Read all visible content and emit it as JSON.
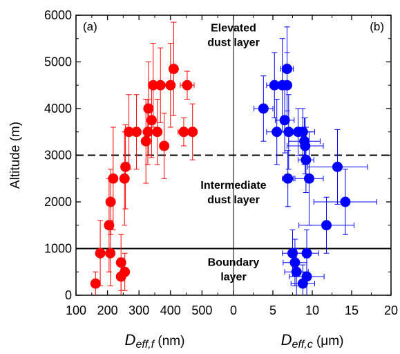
{
  "chart_data": {
    "type": "scatter",
    "ylabel": "Altitude (m)",
    "ylim": [
      0,
      6000
    ],
    "yticks": [
      0,
      1000,
      2000,
      3000,
      4000,
      5000,
      6000
    ],
    "grid": false,
    "horizontal_lines": [
      {
        "y": 3000,
        "style": "dashed"
      },
      {
        "y": 1000,
        "style": "solid"
      }
    ],
    "annotations": [
      {
        "lines": [
          "Elevated",
          "dust layer"
        ],
        "x_position": 200,
        "y_position": 5650
      },
      {
        "lines": [
          "Intermediate",
          "dust layer"
        ],
        "x_position": 200,
        "y_position": 2280
      },
      {
        "lines": [
          "Boundary",
          "layer"
        ],
        "x_position": 200,
        "y_position": 630
      }
    ],
    "panels": [
      {
        "label": "(a)",
        "xlabel_main": "D",
        "xlabel_sub": "eff,f",
        "xlabel_unit": " (nm)",
        "xlim": [
          100,
          600
        ],
        "xticks": [
          100,
          200,
          300,
          400,
          500
        ],
        "color": "#ff0000",
        "points": [
          {
            "x": 162,
            "y": 250,
            "err_y": 250
          },
          {
            "x": 177,
            "y": 900,
            "err_y": 700
          },
          {
            "x": 209,
            "y": 900,
            "err_y": 700
          },
          {
            "x": 243,
            "y": 400,
            "err_y": 400
          },
          {
            "x": 243,
            "y": 700,
            "err_y": 600
          },
          {
            "x": 255,
            "y": 500,
            "err_y": 400
          },
          {
            "x": 205,
            "y": 1500,
            "err_y": 1000
          },
          {
            "x": 210,
            "y": 2000,
            "err_y": 700
          },
          {
            "x": 218,
            "y": 2500,
            "err_y": 1100
          },
          {
            "x": 254,
            "y": 2500,
            "err_y": 1000
          },
          {
            "x": 257,
            "y": 2750,
            "err_y": 900
          },
          {
            "x": 268,
            "y": 3500,
            "err_y": 800
          },
          {
            "x": 292,
            "y": 3500,
            "err_y": 800
          },
          {
            "x": 322,
            "y": 3300,
            "err_y": 900
          },
          {
            "x": 328,
            "y": 3500,
            "err_y": 700
          },
          {
            "x": 330,
            "y": 4000,
            "err_y": 1000
          },
          {
            "x": 340,
            "y": 3750,
            "err_y": 800
          },
          {
            "x": 345,
            "y": 4500,
            "err_y": 900
          },
          {
            "x": 358,
            "y": 3500,
            "err_y": 700
          },
          {
            "x": 368,
            "y": 4500,
            "err_y": 800
          },
          {
            "x": 380,
            "y": 3200,
            "err_y": 700
          },
          {
            "x": 400,
            "y": 4500,
            "err_y": 900
          },
          {
            "x": 410,
            "y": 4850,
            "err_y": 1000
          },
          {
            "x": 442,
            "y": 3500,
            "err_y": 300,
            "err_x": 18
          },
          {
            "x": 453,
            "y": 4500,
            "err_y": 300,
            "err_x": 22
          },
          {
            "x": 470,
            "y": 3500,
            "err_y": 600
          }
        ]
      },
      {
        "label": "(b)",
        "xlabel_main": "D",
        "xlabel_sub": "eff,c",
        "xlabel_unit": " (μm)",
        "xlim": [
          0,
          20
        ],
        "xticks": [
          0,
          5,
          10,
          15,
          20
        ],
        "color": "#0000ff",
        "points": [
          {
            "x": 3.8,
            "y": 4000,
            "err_y": 700,
            "err_x": 1.2
          },
          {
            "x": 5.2,
            "y": 4500,
            "err_y": 700,
            "err_x": 1.0
          },
          {
            "x": 5.5,
            "y": 3500,
            "err_y": 700,
            "err_x": 1.3
          },
          {
            "x": 6.2,
            "y": 4500,
            "err_y": 1000,
            "err_x": 1.0
          },
          {
            "x": 6.5,
            "y": 3750,
            "err_y": 700,
            "err_x": 1.2
          },
          {
            "x": 6.8,
            "y": 4850,
            "err_y": 900,
            "err_x": 0.8
          },
          {
            "x": 6.8,
            "y": 4500,
            "err_y": 700
          },
          {
            "x": 6.9,
            "y": 2500,
            "err_y": 600,
            "err_x": 0.7
          },
          {
            "x": 7.0,
            "y": 3500,
            "err_y": 800,
            "err_x": 1.0
          },
          {
            "x": 7.5,
            "y": 900,
            "err_y": 500,
            "err_x": 1.3
          },
          {
            "x": 7.8,
            "y": 700,
            "err_y": 500,
            "err_x": 1.5
          },
          {
            "x": 8.0,
            "y": 500,
            "err_y": 500,
            "err_x": 1.5
          },
          {
            "x": 8.2,
            "y": 3500,
            "err_y": 500,
            "err_x": 1.0
          },
          {
            "x": 8.8,
            "y": 3500,
            "err_y": 500,
            "err_x": 1.5
          },
          {
            "x": 8.8,
            "y": 250,
            "err_y": 400,
            "err_x": 1.5
          },
          {
            "x": 9.0,
            "y": 3300,
            "err_y": 500,
            "err_x": 2.0
          },
          {
            "x": 9.1,
            "y": 3200,
            "err_y": 600,
            "err_x": 2.3
          },
          {
            "x": 9.2,
            "y": 2900,
            "err_y": 700,
            "err_x": 1.0
          },
          {
            "x": 9.3,
            "y": 900,
            "err_y": 500,
            "err_x": 1.5
          },
          {
            "x": 9.3,
            "y": 400,
            "err_y": 400,
            "err_x": 2.2
          },
          {
            "x": 9.6,
            "y": 2500,
            "err_y": 1000,
            "err_x": 1.8
          },
          {
            "x": 11.8,
            "y": 1500,
            "err_y": 600,
            "err_x": 3.5
          },
          {
            "x": 13.2,
            "y": 2750,
            "err_y": 800,
            "err_x": 3.8
          },
          {
            "x": 14.2,
            "y": 2000,
            "err_y": 700,
            "err_x": 4.0
          }
        ]
      }
    ]
  }
}
